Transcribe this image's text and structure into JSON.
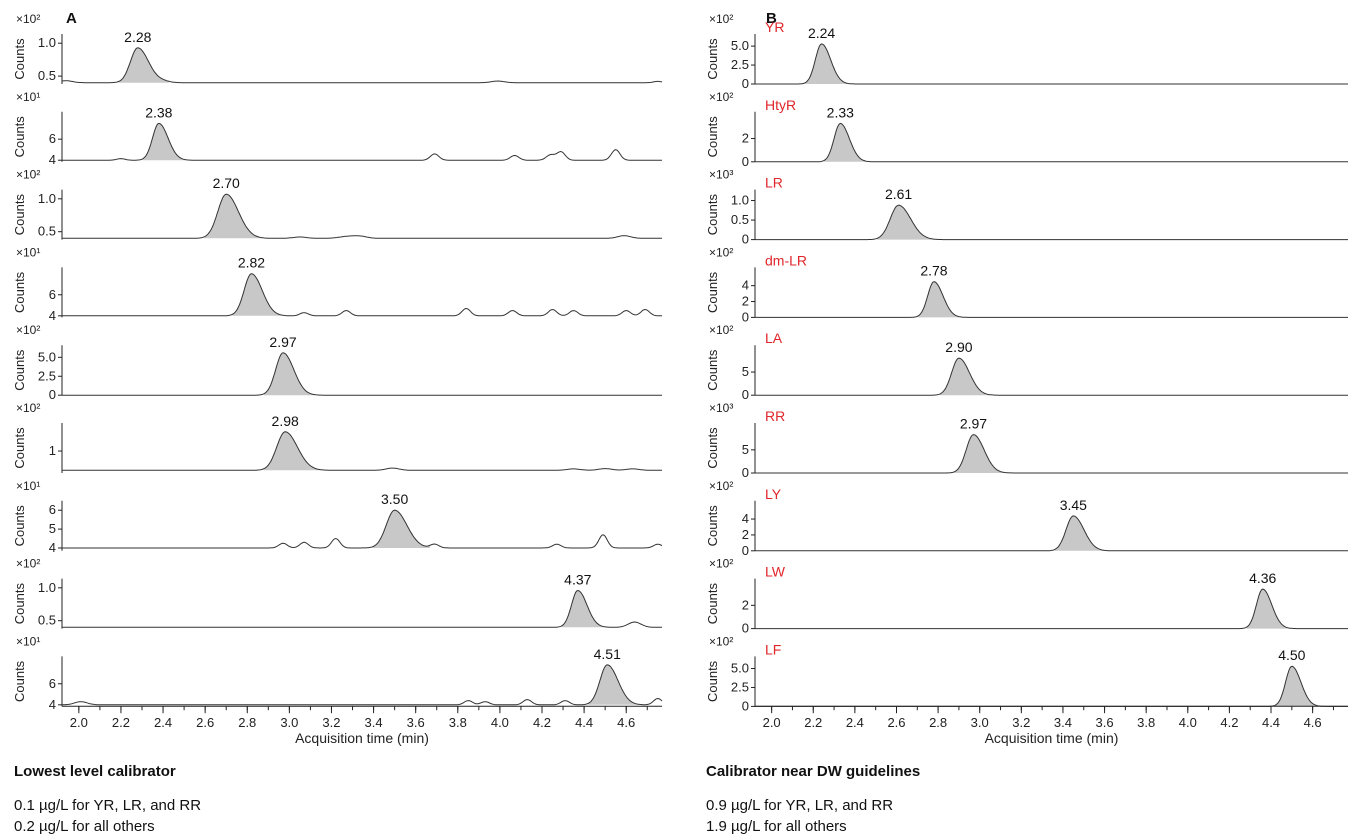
{
  "chart_data": [
    {
      "type": "line",
      "panel_label": "A",
      "xlabel": "Acquisition time (min)",
      "ylabel": "Counts",
      "xlim": [
        1.92,
        4.77
      ],
      "xticks": [
        "2.0",
        "2.2",
        "2.4",
        "2.6",
        "2.8",
        "3.0",
        "3.2",
        "3.4",
        "3.6",
        "3.8",
        "4.0",
        "4.2",
        "4.4",
        "4.6"
      ],
      "caption_title": "Lowest level calibrator",
      "caption_lines": [
        "0.1 µg/L for YR, LR, and RR",
        "0.2 µg/L for all others"
      ],
      "traces": [
        {
          "scale": "×10²",
          "yticks": [
            "1.0",
            "0.5"
          ],
          "ytick_values": [
            1.0,
            0.5
          ],
          "ylim": [
            0.38,
            1.14
          ],
          "baseline": 0.4,
          "peak_time": 2.28,
          "peak_label": "2.28",
          "peak_height": 0.93,
          "peak_width": 0.035,
          "bumps": [
            [
              1.94,
              0.03,
              0.03
            ],
            [
              2.4,
              0.02,
              0.03
            ],
            [
              3.99,
              0.025,
              0.03
            ],
            [
              4.75,
              0.02,
              0.02
            ]
          ]
        },
        {
          "scale": "×10¹",
          "yticks": [
            "6",
            "4"
          ],
          "ytick_values": [
            6,
            4
          ],
          "ylim": [
            3.85,
            8.6
          ],
          "baseline": 4,
          "peak_time": 2.38,
          "peak_label": "2.38",
          "peak_height": 7.5,
          "peak_width": 0.03,
          "bumps": [
            [
              2.2,
              0.15,
              0.02
            ],
            [
              3.69,
              0.6,
              0.02
            ],
            [
              4.07,
              0.45,
              0.02
            ],
            [
              4.24,
              0.5,
              0.02
            ],
            [
              4.29,
              0.8,
              0.02
            ],
            [
              4.55,
              1.0,
              0.02
            ]
          ]
        },
        {
          "scale": "×10²",
          "yticks": [
            "1.0",
            "0.5"
          ],
          "ytick_values": [
            1.0,
            0.5
          ],
          "ylim": [
            0.38,
            1.14
          ],
          "baseline": 0.4,
          "peak_time": 2.7,
          "peak_label": "2.70",
          "peak_height": 1.07,
          "peak_width": 0.04,
          "bumps": [
            [
              3.05,
              0.02,
              0.03
            ],
            [
              3.28,
              0.03,
              0.04
            ],
            [
              3.34,
              0.025,
              0.03
            ],
            [
              4.59,
              0.04,
              0.03
            ]
          ]
        },
        {
          "scale": "×10¹",
          "yticks": [
            "6",
            "4"
          ],
          "ytick_values": [
            6,
            4
          ],
          "ylim": [
            3.85,
            8.6
          ],
          "baseline": 4,
          "peak_time": 2.82,
          "peak_label": "2.82",
          "peak_height": 8.0,
          "peak_width": 0.035,
          "bumps": [
            [
              3.07,
              0.3,
              0.02
            ],
            [
              3.27,
              0.5,
              0.02
            ],
            [
              3.84,
              0.7,
              0.02
            ],
            [
              4.06,
              0.5,
              0.02
            ],
            [
              4.25,
              0.6,
              0.02
            ],
            [
              4.35,
              0.5,
              0.02
            ],
            [
              4.6,
              0.5,
              0.02
            ],
            [
              4.69,
              0.6,
              0.02
            ]
          ]
        },
        {
          "scale": "×10²",
          "yticks": [
            "5.0",
            "2.5",
            "0"
          ],
          "ytick_values": [
            5.0,
            2.5,
            0
          ],
          "ylim": [
            0,
            6.6
          ],
          "baseline": 0,
          "peak_time": 2.97,
          "peak_label": "2.97",
          "peak_height": 5.6,
          "peak_width": 0.035,
          "bumps": []
        },
        {
          "scale": "×10²",
          "yticks": [
            "1"
          ],
          "ytick_values": [
            1
          ],
          "ylim": [
            0.2,
            2.02
          ],
          "baseline": 0.3,
          "peak_time": 2.98,
          "peak_label": "2.98",
          "peak_height": 1.7,
          "peak_width": 0.04,
          "bumps": [
            [
              3.49,
              0.08,
              0.03
            ],
            [
              4.35,
              0.05,
              0.03
            ],
            [
              4.5,
              0.06,
              0.03
            ],
            [
              4.63,
              0.05,
              0.03
            ]
          ]
        },
        {
          "scale": "×10¹",
          "yticks": [
            "6",
            "5",
            "4"
          ],
          "ytick_values": [
            6,
            5,
            4
          ],
          "ylim": [
            3.85,
            6.5
          ],
          "baseline": 4,
          "peak_time": 3.5,
          "peak_label": "3.50",
          "peak_height": 6.0,
          "peak_width": 0.04,
          "bumps": [
            [
              2.97,
              0.25,
              0.02
            ],
            [
              3.07,
              0.3,
              0.02
            ],
            [
              3.22,
              0.5,
              0.02
            ],
            [
              3.69,
              0.2,
              0.02
            ],
            [
              4.27,
              0.2,
              0.02
            ],
            [
              4.49,
              0.7,
              0.02
            ],
            [
              4.75,
              0.2,
              0.02
            ]
          ]
        },
        {
          "scale": "×10²",
          "yticks": [
            "1.0",
            "0.5"
          ],
          "ytick_values": [
            1.0,
            0.5
          ],
          "ylim": [
            0.38,
            1.14
          ],
          "baseline": 0.4,
          "peak_time": 4.37,
          "peak_label": "4.37",
          "peak_height": 0.96,
          "peak_width": 0.03,
          "bumps": [
            [
              4.64,
              0.08,
              0.03
            ]
          ]
        },
        {
          "scale": "×10¹",
          "yticks": [
            "6",
            "4"
          ],
          "ytick_values": [
            6,
            4
          ],
          "ylim": [
            3.85,
            8.6
          ],
          "baseline": 4,
          "peak_time": 4.51,
          "peak_label": "4.51",
          "peak_height": 7.8,
          "peak_width": 0.035,
          "bumps": [
            [
              2.01,
              0.3,
              0.03
            ],
            [
              3.85,
              0.4,
              0.02
            ],
            [
              3.93,
              0.3,
              0.02
            ],
            [
              4.13,
              0.5,
              0.02
            ],
            [
              4.31,
              0.4,
              0.02
            ],
            [
              4.75,
              0.6,
              0.02
            ]
          ]
        }
      ]
    },
    {
      "type": "line",
      "panel_label": "B",
      "xlabel": "Acquisition time (min)",
      "ylabel": "Counts",
      "xlim": [
        1.92,
        4.77
      ],
      "xticks": [
        "2.0",
        "2.2",
        "2.4",
        "2.6",
        "2.8",
        "3.0",
        "3.2",
        "3.4",
        "3.6",
        "3.8",
        "4.0",
        "4.2",
        "4.4",
        "4.6"
      ],
      "caption_title": "Calibrator near DW guidelines",
      "caption_lines": [
        "0.9 µg/L for YR, LR, and RR",
        "1.9 µg/L for all others"
      ],
      "traces": [
        {
          "name": "YR",
          "scale": "×10²",
          "yticks": [
            "5.0",
            "2.5",
            "0"
          ],
          "ytick_values": [
            5.0,
            2.5,
            0
          ],
          "ylim": [
            0,
            6.6
          ],
          "baseline": 0,
          "peak_time": 2.24,
          "peak_label": "2.24",
          "peak_height": 5.3,
          "peak_width": 0.03,
          "bumps": []
        },
        {
          "name": "HtyR",
          "scale": "×10²",
          "yticks": [
            "2",
            "0"
          ],
          "ytick_values": [
            2,
            0
          ],
          "ylim": [
            0,
            4.3
          ],
          "baseline": 0,
          "peak_time": 2.33,
          "peak_label": "2.33",
          "peak_height": 3.3,
          "peak_width": 0.03,
          "bumps": []
        },
        {
          "name": "LR",
          "scale": "×10³",
          "yticks": [
            "1.0",
            "0.5",
            "0"
          ],
          "ytick_values": [
            1.0,
            0.5,
            0
          ],
          "ylim": [
            0,
            1.28
          ],
          "baseline": 0,
          "peak_time": 2.61,
          "peak_label": "2.61",
          "peak_height": 0.88,
          "peak_width": 0.04,
          "bumps": []
        },
        {
          "name": "dm-LR",
          "scale": "×10²",
          "yticks": [
            "4",
            "2",
            "0"
          ],
          "ytick_values": [
            4,
            2,
            0
          ],
          "ylim": [
            0,
            6.3
          ],
          "baseline": 0,
          "peak_time": 2.78,
          "peak_label": "2.78",
          "peak_height": 4.5,
          "peak_width": 0.03,
          "bumps": []
        },
        {
          "name": "LA",
          "scale": "×10²",
          "yticks": [
            "5",
            "0"
          ],
          "ytick_values": [
            5,
            0
          ],
          "ylim": [
            0,
            10.8
          ],
          "baseline": 0,
          "peak_time": 2.9,
          "peak_label": "2.90",
          "peak_height": 8.0,
          "peak_width": 0.035,
          "bumps": []
        },
        {
          "name": "RR",
          "scale": "×10³",
          "yticks": [
            "5",
            "0"
          ],
          "ytick_values": [
            5,
            0
          ],
          "ylim": [
            0,
            10.8
          ],
          "baseline": 0,
          "peak_time": 2.97,
          "peak_label": "2.97",
          "peak_height": 8.3,
          "peak_width": 0.035,
          "bumps": []
        },
        {
          "name": "LY",
          "scale": "×10²",
          "yticks": [
            "4",
            "2",
            "0"
          ],
          "ytick_values": [
            4,
            2,
            0
          ],
          "ylim": [
            0,
            6.3
          ],
          "baseline": 0,
          "peak_time": 3.45,
          "peak_label": "3.45",
          "peak_height": 4.4,
          "peak_width": 0.035,
          "bumps": []
        },
        {
          "name": "LW",
          "scale": "×10²",
          "yticks": [
            "2",
            "0"
          ],
          "ytick_values": [
            2,
            0
          ],
          "ylim": [
            0,
            4.3
          ],
          "baseline": 0,
          "peak_time": 4.36,
          "peak_label": "4.36",
          "peak_height": 3.4,
          "peak_width": 0.03,
          "bumps": []
        },
        {
          "name": "LF",
          "scale": "×10²",
          "yticks": [
            "5.0",
            "2.5",
            "0"
          ],
          "ytick_values": [
            5.0,
            2.5,
            0
          ],
          "ylim": [
            0,
            6.6
          ],
          "baseline": 0,
          "peak_time": 4.5,
          "peak_label": "4.50",
          "peak_height": 5.3,
          "peak_width": 0.03,
          "bumps": []
        }
      ]
    }
  ],
  "colors": {
    "trace": "#333333",
    "fill": "#c8c8c8",
    "compound_label": "#e0262b",
    "axis": "#222222"
  }
}
